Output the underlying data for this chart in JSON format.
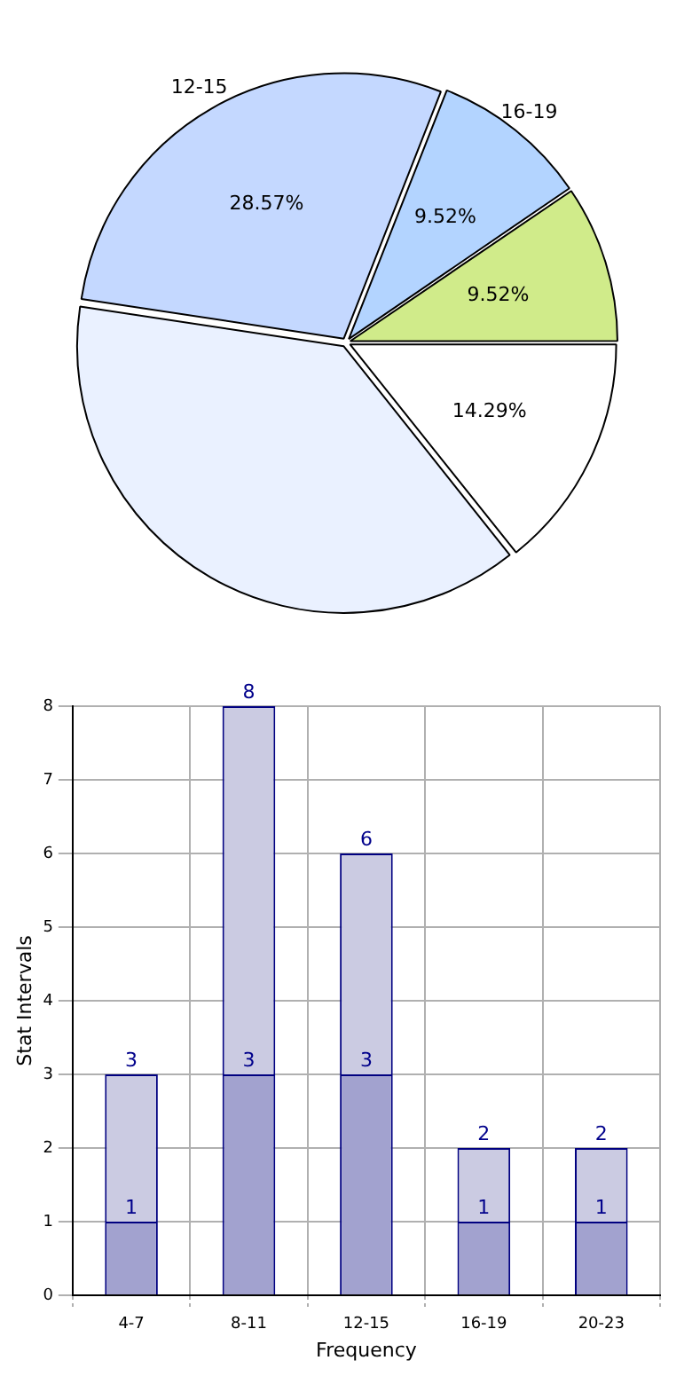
{
  "chart_data": [
    {
      "type": "pie",
      "categories": [
        null,
        null,
        "12-15",
        "16-19",
        null
      ],
      "values": [
        14.29,
        38.1,
        28.57,
        9.52,
        9.52
      ],
      "colors": [
        "#ffffff",
        "#eaf1ff",
        "#c4d8ff",
        "#b3d4ff",
        "#d0eb8a"
      ],
      "value_labels": [
        "14.29%",
        null,
        "28.57%",
        "9.52%",
        "9.52%"
      ]
    },
    {
      "type": "bar",
      "xlabel": "Frequency",
      "ylabel": "Stat Intervals",
      "categories": [
        "4-7",
        "8-11",
        "12-15",
        "16-19",
        "20-23"
      ],
      "series": [
        {
          "color": "#a2a2cf",
          "values": [
            1,
            3,
            3,
            1,
            1
          ],
          "value_labels": [
            "1",
            "3",
            "3",
            "1",
            "1"
          ]
        },
        {
          "color": "#cbcbe2",
          "values": [
            2,
            5,
            3,
            1,
            1
          ]
        }
      ],
      "totals": [
        "3",
        "8",
        "6",
        "2",
        "2"
      ],
      "stacked": true,
      "ylim": [
        0,
        8
      ],
      "yticks": [
        0,
        1,
        2,
        3,
        4,
        5,
        6,
        7,
        8
      ],
      "grid": true
    }
  ]
}
